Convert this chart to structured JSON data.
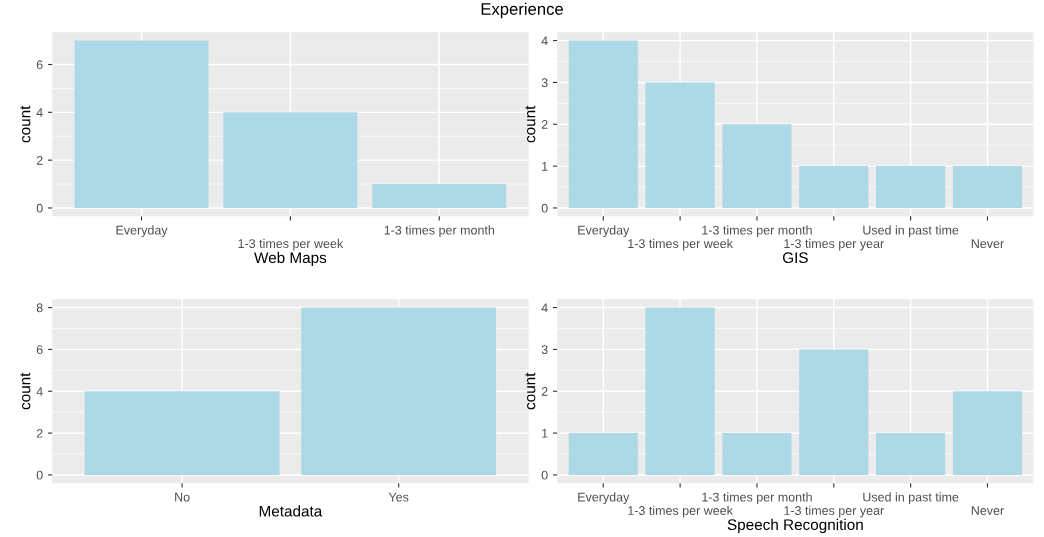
{
  "chart_data": [
    {
      "type": "bar",
      "title": "Experience",
      "xlabel": "Web Maps",
      "ylabel": "count",
      "categories": [
        "Everyday",
        "1-3 times per week",
        "1-3 times per month"
      ],
      "values": [
        7,
        4,
        1
      ],
      "color": "#add8e6",
      "ylim": [
        -0.35,
        7.35
      ],
      "yticks": [
        0,
        2,
        4,
        6
      ],
      "grid": true
    },
    {
      "type": "bar",
      "xlabel": "GIS",
      "ylabel": "count",
      "categories": [
        "Everyday",
        "1-3 times per week",
        "1-3 times per month",
        "1-3 times per year",
        "Used in past time",
        "Never"
      ],
      "values": [
        4,
        3,
        2,
        1,
        1,
        1
      ],
      "color": "#add8e6",
      "ylim": [
        -0.2,
        4.2
      ],
      "yticks": [
        0,
        1,
        2,
        3,
        4
      ],
      "grid": true
    },
    {
      "type": "bar",
      "xlabel": "Metadata",
      "ylabel": "count",
      "categories": [
        "No",
        "Yes"
      ],
      "values": [
        4,
        8
      ],
      "color": "#add8e6",
      "ylim": [
        -0.4,
        8.4
      ],
      "yticks": [
        0,
        2,
        4,
        6,
        8
      ],
      "grid": true
    },
    {
      "type": "bar",
      "xlabel": "Speech Recognition",
      "ylabel": "count",
      "categories": [
        "Everyday",
        "1-3 times per week",
        "1-3 times per month",
        "1-3 times per year",
        "Used in past time",
        "Never"
      ],
      "values": [
        1,
        4,
        1,
        3,
        1,
        2
      ],
      "color": "#add8e6",
      "ylim": [
        -0.2,
        4.2
      ],
      "yticks": [
        0,
        1,
        2,
        3,
        4
      ],
      "grid": true
    }
  ]
}
